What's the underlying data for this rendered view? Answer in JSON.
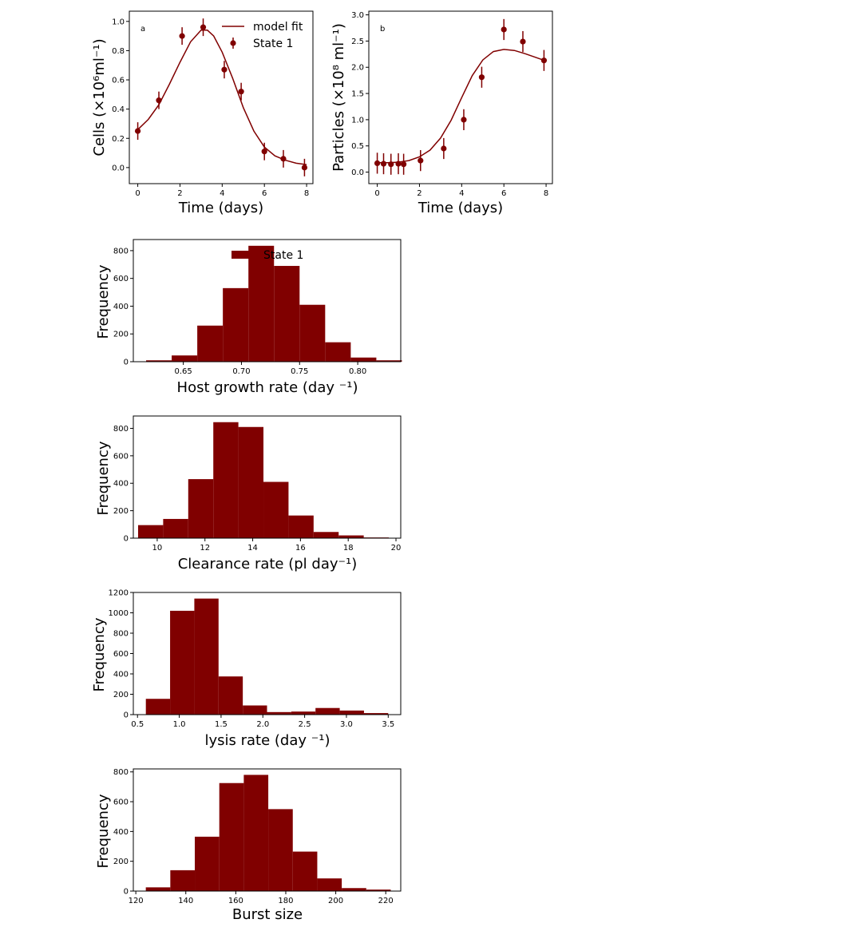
{
  "colors": {
    "series": "#800000",
    "axis": "#000000",
    "background": "#ffffff"
  },
  "chart_data": [
    {
      "id": "a",
      "type": "scatter",
      "panel_label": "a",
      "xlabel": "Time (days)",
      "ylabel": "Cells (×10⁶ml⁻¹)",
      "xlim": [
        -0.4,
        8.3
      ],
      "ylim": [
        -0.11,
        1.07
      ],
      "xticks": [
        0,
        2,
        4,
        6,
        8
      ],
      "yticks": [
        0.0,
        0.2,
        0.4,
        0.6,
        0.8,
        1.0
      ],
      "ytick_labels": [
        "0.0",
        "0.2",
        "0.4",
        "0.6",
        "0.8",
        "1.0"
      ],
      "legend": {
        "placement": "top-right",
        "entries": [
          "model fit",
          "State 1"
        ]
      },
      "points": {
        "name": "State 1",
        "x": [
          0,
          1,
          2.1,
          3.1,
          4.1,
          4.9,
          6.0,
          6.9,
          7.9
        ],
        "y": [
          0.25,
          0.46,
          0.9,
          0.96,
          0.67,
          0.52,
          0.11,
          0.06,
          0.0
        ],
        "err": [
          0.06,
          0.06,
          0.06,
          0.06,
          0.06,
          0.06,
          0.06,
          0.06,
          0.06
        ]
      },
      "fit": {
        "name": "model fit",
        "x": [
          0,
          0.5,
          1.0,
          1.5,
          2.0,
          2.5,
          3.0,
          3.3,
          3.6,
          4.0,
          4.5,
          5.0,
          5.5,
          6.0,
          6.5,
          7.0,
          7.5,
          8.0
        ],
        "y": [
          0.26,
          0.33,
          0.43,
          0.57,
          0.72,
          0.86,
          0.94,
          0.94,
          0.9,
          0.79,
          0.61,
          0.41,
          0.25,
          0.14,
          0.08,
          0.05,
          0.03,
          0.02
        ]
      }
    },
    {
      "id": "b",
      "type": "scatter",
      "panel_label": "b",
      "xlabel": "Time (days)",
      "ylabel": "Particles (×10⁸ ml⁻¹)",
      "xlim": [
        -0.4,
        8.3
      ],
      "ylim": [
        -0.22,
        3.07
      ],
      "xticks": [
        0,
        2,
        4,
        6,
        8
      ],
      "yticks": [
        0.0,
        0.5,
        1.0,
        1.5,
        2.0,
        2.5,
        3.0
      ],
      "ytick_labels": [
        "0.0",
        "0.5",
        "1.0",
        "1.5",
        "2.0",
        "2.5",
        "3.0"
      ],
      "points": {
        "name": "State 1",
        "x": [
          0,
          0.3,
          0.65,
          1.0,
          1.25,
          2.05,
          3.15,
          4.1,
          4.95,
          6.0,
          6.9,
          7.9
        ],
        "y": [
          0.17,
          0.16,
          0.15,
          0.16,
          0.15,
          0.22,
          0.45,
          1.0,
          1.81,
          2.72,
          2.49,
          2.13
        ],
        "err": [
          0.2,
          0.2,
          0.2,
          0.2,
          0.2,
          0.2,
          0.2,
          0.2,
          0.2,
          0.2,
          0.2,
          0.2
        ]
      },
      "fit": {
        "name": "model fit",
        "x": [
          0,
          0.5,
          1.0,
          1.5,
          2.0,
          2.5,
          3.0,
          3.5,
          4.0,
          4.5,
          5.0,
          5.5,
          6.0,
          6.5,
          7.0,
          7.5,
          8.0
        ],
        "y": [
          0.18,
          0.18,
          0.19,
          0.22,
          0.29,
          0.42,
          0.65,
          0.99,
          1.42,
          1.84,
          2.14,
          2.3,
          2.34,
          2.32,
          2.26,
          2.19,
          2.12
        ]
      }
    },
    {
      "id": "host",
      "type": "bar",
      "xlabel": "Host growth rate (day ⁻¹)",
      "ylabel": "Frequency",
      "xlim": [
        0.607,
        0.837
      ],
      "ylim": [
        0,
        880
      ],
      "xticks": [
        0.65,
        0.7,
        0.75,
        0.8
      ],
      "xtick_labels": [
        "0.65",
        "0.70",
        "0.75",
        "0.80"
      ],
      "yticks": [
        0,
        200,
        400,
        600,
        800
      ],
      "legend": {
        "placement": "top-center",
        "entries": [
          "State 1"
        ]
      },
      "bin_edges": [
        0.618,
        0.64,
        0.662,
        0.684,
        0.706,
        0.728,
        0.75,
        0.772,
        0.794,
        0.816,
        0.838
      ],
      "values": [
        10,
        45,
        260,
        530,
        835,
        690,
        410,
        140,
        30,
        10
      ]
    },
    {
      "id": "clearance",
      "type": "bar",
      "xlabel": "Clearance rate (pl day⁻¹)",
      "ylabel": "Frequency",
      "xlim": [
        9.0,
        20.2
      ],
      "ylim": [
        0,
        890
      ],
      "xticks": [
        10,
        12,
        14,
        16,
        18,
        20
      ],
      "yticks": [
        0,
        200,
        400,
        600,
        800
      ],
      "bin_edges": [
        9.2,
        10.25,
        11.3,
        12.35,
        13.4,
        14.45,
        15.5,
        16.55,
        17.6,
        18.65,
        19.7
      ],
      "values": [
        95,
        140,
        430,
        845,
        810,
        410,
        165,
        45,
        20,
        5
      ]
    },
    {
      "id": "lysis",
      "type": "bar",
      "xlabel": "lysis rate (day ⁻¹)",
      "ylabel": "Frequency",
      "xlim": [
        0.45,
        3.65
      ],
      "ylim": [
        0,
        1200
      ],
      "xticks": [
        0.5,
        1.0,
        1.5,
        2.0,
        2.5,
        3.0,
        3.5
      ],
      "xtick_labels": [
        "0.5",
        "1.0",
        "1.5",
        "2.0",
        "2.5",
        "3.0",
        "3.5"
      ],
      "yticks": [
        0,
        200,
        400,
        600,
        800,
        1000,
        1200
      ],
      "bin_edges": [
        0.6,
        0.89,
        1.18,
        1.47,
        1.76,
        2.05,
        2.34,
        2.63,
        2.92,
        3.21,
        3.5
      ],
      "values": [
        155,
        1020,
        1140,
        375,
        90,
        25,
        30,
        65,
        40,
        15
      ]
    },
    {
      "id": "burst",
      "type": "bar",
      "xlabel": "Burst size",
      "ylabel": "Frequency",
      "xlim": [
        119,
        226
      ],
      "ylim": [
        0,
        820
      ],
      "xticks": [
        120,
        140,
        160,
        180,
        200,
        220
      ],
      "yticks": [
        0,
        200,
        400,
        600,
        800
      ],
      "bin_edges": [
        124,
        133.8,
        143.6,
        153.4,
        163.2,
        173.0,
        182.8,
        192.6,
        202.4,
        212.2,
        222
      ],
      "values": [
        25,
        140,
        365,
        725,
        780,
        550,
        265,
        85,
        20,
        10
      ]
    }
  ]
}
